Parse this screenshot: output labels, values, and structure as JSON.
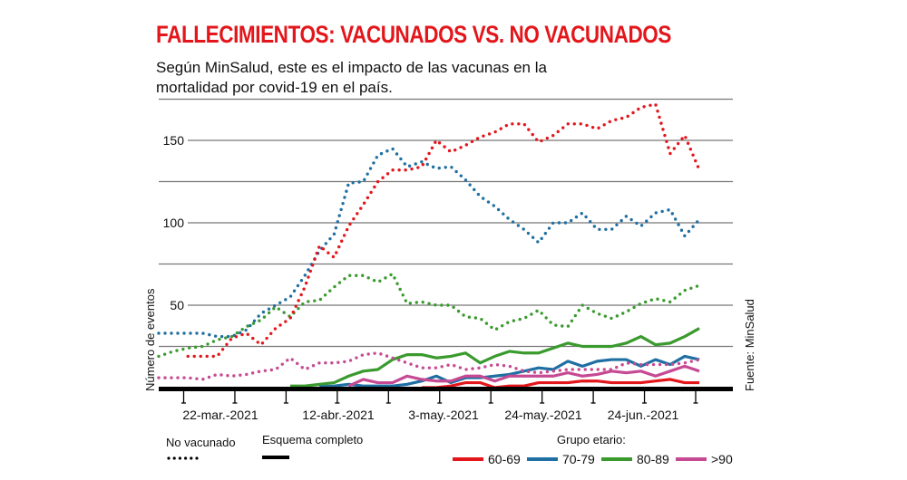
{
  "header": {
    "title": "FALLECIMIENTOS: VACUNADOS VS. NO VACUNADOS",
    "subtitle_line1": "Según MinSalud, este es el impacto de las vacunas en la",
    "subtitle_line2": "mortalidad por covid-19 en el país."
  },
  "source": "Fuente: MinSalud",
  "chart_data": {
    "type": "line",
    "ylabel": "Número de eventos",
    "xlabel": "",
    "ylim": [
      0,
      175
    ],
    "yticks": [
      50,
      100,
      150
    ],
    "y_gridlines": [
      25,
      50,
      75,
      100,
      125,
      150,
      175
    ],
    "grid": true,
    "x_tick_labels": [
      "22-mar.-2021",
      "12-abr.-2021",
      "3-may.-2021",
      "24-may.-2021",
      "24-jun.-2021"
    ],
    "x": [
      "2021-03-07",
      "2021-03-10",
      "2021-03-13",
      "2021-03-16",
      "2021-03-19",
      "2021-03-22",
      "2021-03-25",
      "2021-03-28",
      "2021-03-31",
      "2021-04-03",
      "2021-04-06",
      "2021-04-09",
      "2021-04-12",
      "2021-04-15",
      "2021-04-18",
      "2021-04-21",
      "2021-04-24",
      "2021-04-27",
      "2021-04-30",
      "2021-05-03",
      "2021-05-06",
      "2021-05-09",
      "2021-05-12",
      "2021-05-15",
      "2021-05-18",
      "2021-05-21",
      "2021-05-24",
      "2021-05-27",
      "2021-05-30",
      "2021-06-02",
      "2021-06-05",
      "2021-06-08",
      "2021-06-11",
      "2021-06-14",
      "2021-06-17",
      "2021-06-20",
      "2021-06-23",
      "2021-06-26"
    ],
    "series": [
      {
        "group": "60-69",
        "status": "No vacunado",
        "style": "dotted",
        "color": "#e3161b",
        "values": [
          null,
          null,
          19,
          19,
          19,
          30,
          33,
          26,
          36,
          42,
          61,
          86,
          79,
          98,
          111,
          125,
          132,
          132,
          134,
          150,
          143,
          147,
          152,
          155,
          160,
          160,
          149,
          153,
          160,
          160,
          157,
          162,
          164,
          170,
          172,
          142,
          153,
          132
        ]
      },
      {
        "group": "70-79",
        "status": "No vacunado",
        "style": "dotted",
        "color": "#1f6fa3",
        "values": [
          33,
          33,
          33,
          33,
          31,
          31,
          35,
          45,
          50,
          55,
          68,
          83,
          93,
          124,
          125,
          141,
          145,
          134,
          137,
          133,
          134,
          126,
          116,
          110,
          102,
          96,
          88,
          100,
          100,
          106,
          96,
          96,
          104,
          98,
          106,
          108,
          92,
          102
        ]
      },
      {
        "group": "80-89",
        "status": "No vacunado",
        "style": "dotted",
        "color": "#3a9a2e",
        "values": [
          19,
          22,
          24,
          25,
          29,
          31,
          37,
          41,
          49,
          43,
          52,
          53,
          61,
          68,
          68,
          64,
          69,
          51,
          52,
          50,
          50,
          43,
          42,
          35,
          40,
          42,
          47,
          38,
          37,
          50,
          45,
          42,
          46,
          51,
          54,
          52,
          59,
          62
        ]
      },
      {
        "group": ">90",
        "status": "No vacunado",
        "style": "dotted",
        "color": "#c64a93",
        "values": [
          6,
          6,
          6,
          5,
          8,
          7,
          8,
          10,
          11,
          18,
          11,
          15,
          15,
          16,
          20,
          21,
          18,
          15,
          12,
          12,
          14,
          11,
          12,
          14,
          13,
          10,
          9,
          10,
          11,
          11,
          11,
          11,
          15,
          14,
          14,
          14,
          15,
          17
        ]
      },
      {
        "group": "60-69",
        "status": "Esquema completo",
        "style": "solid",
        "color": "#e3161b",
        "values": [
          null,
          null,
          null,
          null,
          null,
          null,
          null,
          null,
          null,
          null,
          null,
          null,
          null,
          null,
          null,
          null,
          null,
          null,
          0,
          0,
          1,
          3,
          3,
          0,
          1,
          1,
          3,
          3,
          3,
          4,
          4,
          3,
          3,
          3,
          4,
          5,
          3,
          3
        ]
      },
      {
        "group": "70-79",
        "status": "Esquema completo",
        "style": "solid",
        "color": "#1f6fa3",
        "values": [
          null,
          null,
          null,
          null,
          null,
          null,
          null,
          null,
          null,
          null,
          null,
          0.5,
          1,
          2,
          1,
          1,
          1,
          2,
          4,
          7,
          3,
          6,
          6,
          7,
          8,
          10,
          12,
          11,
          16,
          13,
          16,
          17,
          17,
          13,
          17,
          14,
          19,
          17
        ]
      },
      {
        "group": "80-89",
        "status": "Esquema completo",
        "style": "solid",
        "color": "#3a9a2e",
        "values": [
          null,
          null,
          null,
          null,
          null,
          null,
          null,
          null,
          null,
          1,
          1,
          2,
          3,
          7,
          10,
          11,
          17,
          20,
          20,
          18,
          19,
          21,
          15,
          19,
          22,
          21,
          21,
          24,
          27,
          25,
          25,
          25,
          27,
          31,
          26,
          27,
          31,
          36
        ]
      },
      {
        "group": ">90",
        "status": "Esquema completo",
        "style": "solid",
        "color": "#c64a93",
        "values": [
          null,
          null,
          null,
          null,
          null,
          null,
          null,
          null,
          null,
          null,
          null,
          null,
          null,
          1,
          5,
          3,
          3,
          7,
          5,
          4,
          4,
          7,
          7,
          4,
          7,
          7,
          7,
          7,
          9,
          7,
          8,
          10,
          9,
          10,
          7,
          10,
          13,
          10
        ]
      }
    ],
    "legend": {
      "status_items": [
        {
          "label": "No vacunado",
          "style": "dotted"
        },
        {
          "label": "Esquema completo",
          "style": "solid"
        }
      ],
      "group_title": "Grupo etario:",
      "group_items": [
        {
          "label": "60-69",
          "color": "#e3161b"
        },
        {
          "label": "70-79",
          "color": "#1f6fa3"
        },
        {
          "label": "80-89",
          "color": "#3a9a2e"
        },
        {
          "label": ">90",
          "color": "#c64a93"
        }
      ],
      "placement": "bottom"
    }
  }
}
